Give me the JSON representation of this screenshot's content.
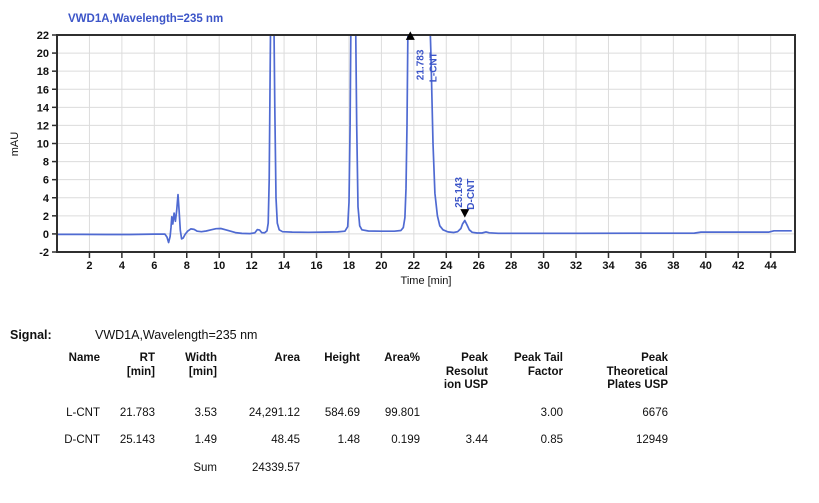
{
  "chart": {
    "colors": {
      "curve": "#4f6ad2",
      "title": "#3c55c8",
      "annotation": "#3c55c8",
      "grid": "#dcdcdc",
      "axis": "#2f2f2f",
      "marker": "#000000",
      "tick_text": "#111111"
    }
  },
  "chart_data": {
    "type": "line",
    "title": "VWD1A,Wavelength=235 nm",
    "xlabel": "Time [min]",
    "ylabel": "mAU",
    "xlim": [
      0,
      45.5
    ],
    "ylim": [
      -2,
      22
    ],
    "grid": true,
    "xticks": [
      2,
      4,
      6,
      8,
      10,
      12,
      14,
      16,
      18,
      20,
      22,
      24,
      26,
      28,
      30,
      32,
      34,
      36,
      38,
      40,
      42,
      44
    ],
    "yticks": [
      -2,
      0,
      2,
      4,
      6,
      8,
      10,
      12,
      14,
      16,
      18,
      20,
      22
    ],
    "series": [
      {
        "name": "VWD1A,Wavelength=235 nm",
        "points": [
          [
            0,
            -0.05
          ],
          [
            1.5,
            -0.05
          ],
          [
            3,
            -0.07
          ],
          [
            4.5,
            -0.06
          ],
          [
            6,
            -0.02
          ],
          [
            6.65,
            -0.02
          ],
          [
            6.78,
            -0.35
          ],
          [
            6.88,
            -0.95
          ],
          [
            6.97,
            -0.3
          ],
          [
            7.03,
            0.7
          ],
          [
            7.08,
            1.9
          ],
          [
            7.14,
            1.1
          ],
          [
            7.22,
            2.3
          ],
          [
            7.3,
            1.4
          ],
          [
            7.38,
            2.6
          ],
          [
            7.46,
            4.35
          ],
          [
            7.53,
            2.6
          ],
          [
            7.6,
            0.4
          ],
          [
            7.68,
            -0.55
          ],
          [
            7.78,
            -0.45
          ],
          [
            7.9,
            -0.05
          ],
          [
            8.05,
            0.3
          ],
          [
            8.25,
            0.55
          ],
          [
            8.45,
            0.5
          ],
          [
            8.65,
            0.3
          ],
          [
            8.9,
            0.25
          ],
          [
            9.2,
            0.32
          ],
          [
            9.5,
            0.45
          ],
          [
            9.8,
            0.58
          ],
          [
            10.1,
            0.6
          ],
          [
            10.4,
            0.45
          ],
          [
            10.7,
            0.3
          ],
          [
            11.0,
            0.15
          ],
          [
            11.4,
            0.06
          ],
          [
            11.9,
            0.04
          ],
          [
            12.2,
            0.12
          ],
          [
            12.35,
            0.48
          ],
          [
            12.5,
            0.42
          ],
          [
            12.62,
            0.15
          ],
          [
            12.8,
            0.12
          ],
          [
            12.95,
            0.35
          ],
          [
            13.02,
            1.2
          ],
          [
            13.08,
            6
          ],
          [
            13.13,
            16
          ],
          [
            13.18,
            26
          ],
          [
            13.36,
            26
          ],
          [
            13.43,
            14
          ],
          [
            13.5,
            4
          ],
          [
            13.58,
            1.2
          ],
          [
            13.7,
            0.45
          ],
          [
            13.9,
            0.25
          ],
          [
            14.5,
            0.2
          ],
          [
            15.5,
            0.18
          ],
          [
            16.5,
            0.2
          ],
          [
            17.3,
            0.22
          ],
          [
            17.75,
            0.3
          ],
          [
            17.92,
            0.8
          ],
          [
            18.0,
            3.5
          ],
          [
            18.07,
            12
          ],
          [
            18.13,
            26
          ],
          [
            18.4,
            26
          ],
          [
            18.48,
            12
          ],
          [
            18.56,
            3
          ],
          [
            18.66,
            0.9
          ],
          [
            18.8,
            0.45
          ],
          [
            19.2,
            0.32
          ],
          [
            20,
            0.3
          ],
          [
            20.8,
            0.3
          ],
          [
            21.2,
            0.38
          ],
          [
            21.35,
            0.7
          ],
          [
            21.45,
            1.8
          ],
          [
            21.52,
            5
          ],
          [
            21.58,
            12
          ],
          [
            21.65,
            26
          ],
          [
            22.95,
            26
          ],
          [
            23.05,
            20
          ],
          [
            23.18,
            10
          ],
          [
            23.3,
            4.5
          ],
          [
            23.45,
            2
          ],
          [
            23.6,
            0.9
          ],
          [
            23.8,
            0.45
          ],
          [
            24.1,
            0.22
          ],
          [
            24.45,
            0.16
          ],
          [
            24.7,
            0.25
          ],
          [
            24.9,
            0.6
          ],
          [
            25.0,
            1.1
          ],
          [
            25.143,
            1.48
          ],
          [
            25.28,
            1.0
          ],
          [
            25.42,
            0.45
          ],
          [
            25.6,
            0.18
          ],
          [
            25.9,
            0.1
          ],
          [
            26.2,
            0.1
          ],
          [
            26.45,
            0.22
          ],
          [
            26.65,
            0.12
          ],
          [
            27.2,
            0.07
          ],
          [
            29,
            0.07
          ],
          [
            32,
            0.07
          ],
          [
            36,
            0.08
          ],
          [
            39.3,
            0.09
          ],
          [
            39.7,
            0.2
          ],
          [
            43.9,
            0.2
          ],
          [
            44.2,
            0.34
          ],
          [
            45.3,
            0.34
          ]
        ]
      }
    ],
    "peaks": [
      {
        "rt": 21.783,
        "rt_label": "21.783",
        "name": "L-CNT",
        "marker": "up",
        "marker_mau": 22.4,
        "text_bottom_mau": 17.0,
        "dx": [
          13,
          26
        ]
      },
      {
        "rt": 25.143,
        "rt_label": "25.143",
        "name": "D-CNT",
        "marker": "down",
        "marker_mau": 1.8,
        "text_bottom_mau": 2.9,
        "dx": [
          -3,
          9
        ]
      }
    ]
  },
  "signal": {
    "label": "Signal:",
    "value": "VWD1A,Wavelength=235 nm"
  },
  "table": {
    "headers": [
      "Name",
      "RT\n[min]",
      "Width\n[min]",
      "Area",
      "Height",
      "Area%",
      "Peak\nResolut\nion USP",
      "Peak Tail\nFactor",
      "Peak\nTheoretical\nPlates USP"
    ],
    "rows": [
      [
        "L-CNT",
        "21.783",
        "3.53",
        "24,291.12",
        "584.69",
        "99.801",
        "",
        "3.00",
        "6676"
      ],
      [
        "D-CNT",
        "25.143",
        "1.49",
        "48.45",
        "1.48",
        "0.199",
        "3.44",
        "0.85",
        "12949"
      ]
    ],
    "sum_label": "Sum",
    "sum_value": "24339.57"
  }
}
